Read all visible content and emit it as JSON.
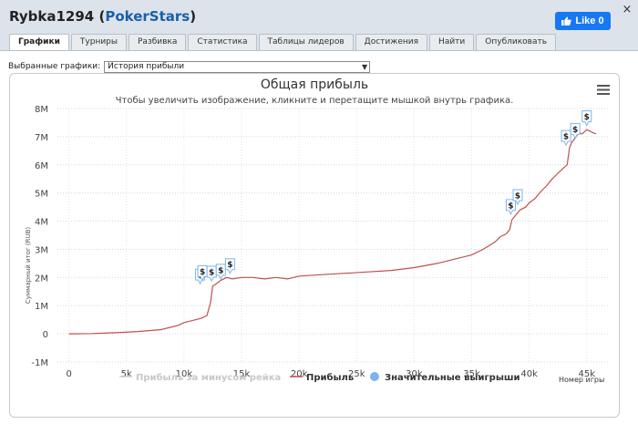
{
  "window": {
    "player": "Rybka1294",
    "site": "PokerStars",
    "close_glyph": "×",
    "like_label": "Like 0"
  },
  "tabs": [
    {
      "label": "Графики",
      "active": true
    },
    {
      "label": "Турниры"
    },
    {
      "label": "Разбивка"
    },
    {
      "label": "Статистика"
    },
    {
      "label": "Таблицы лидеров"
    },
    {
      "label": "Достижения"
    },
    {
      "label": "Найти"
    },
    {
      "label": "Опубликовать"
    }
  ],
  "selector": {
    "label": "Выбранные графики:",
    "value": "История прибыли"
  },
  "icons": {
    "close": "close-icon",
    "like": "thumbs-up-icon",
    "menu": "hamburger-menu-icon",
    "dropdown": "chevron-down-icon"
  },
  "colors": {
    "profit_line": "#c0504d",
    "rake_line": "#d0d0d0",
    "big_wins_marker": "#7cb5ec",
    "site_link": "#1a5fa8",
    "like_button": "#1877f2"
  },
  "chart_data": {
    "type": "line",
    "title": "Общая прибыль",
    "subtitle": "Чтобы увеличить изображение, кликните и перетащите мышкой внутрь графика.",
    "ylabel": "Суммарный итог (RUB)",
    "xlabel": "Номер игры",
    "ylim": [
      -1000000,
      8000000
    ],
    "xlim": [
      -1000,
      47000
    ],
    "y_ticks": [
      "-1M",
      "0",
      "1M",
      "2M",
      "3M",
      "4M",
      "5M",
      "6M",
      "7M",
      "8M"
    ],
    "y_tick_values": [
      -1000000,
      0,
      1000000,
      2000000,
      3000000,
      4000000,
      5000000,
      6000000,
      7000000,
      8000000
    ],
    "x_ticks": [
      "0",
      "5k",
      "10k",
      "15k",
      "20k",
      "25k",
      "30k",
      "35k",
      "40k",
      "45k"
    ],
    "x_tick_values": [
      0,
      5000,
      10000,
      15000,
      20000,
      25000,
      30000,
      35000,
      40000,
      45000
    ],
    "grid": true,
    "legend_position": "bottom",
    "series": [
      {
        "name": "Прибыль",
        "x": [
          0,
          2000,
          4000,
          6000,
          8000,
          9500,
          10000,
          10800,
          11500,
          12000,
          12300,
          12500,
          12700,
          13200,
          13700,
          14200,
          15000,
          16000,
          17000,
          18000,
          19000,
          20000,
          22000,
          24000,
          26000,
          28000,
          30000,
          32000,
          33000,
          34000,
          35000,
          36000,
          37000,
          37500,
          38000,
          38300,
          38500,
          38800,
          39200,
          39700,
          40000,
          40500,
          41000,
          41500,
          42000,
          42500,
          43000,
          43300,
          43500,
          43700,
          44000,
          44300,
          44600,
          45000,
          45500,
          45800
        ],
        "values": [
          0,
          10000,
          40000,
          80000,
          150000,
          300000,
          400000,
          480000,
          550000,
          650000,
          1100000,
          1700000,
          1750000,
          1900000,
          2000000,
          1950000,
          2000000,
          2000000,
          1950000,
          2000000,
          1950000,
          2050000,
          2100000,
          2150000,
          2200000,
          2250000,
          2350000,
          2500000,
          2600000,
          2700000,
          2800000,
          3000000,
          3250000,
          3450000,
          3550000,
          3700000,
          4050000,
          4200000,
          4400000,
          4500000,
          4650000,
          4800000,
          5050000,
          5250000,
          5500000,
          5700000,
          5900000,
          6000000,
          6600000,
          6800000,
          6950000,
          7150000,
          7100000,
          7250000,
          7150000,
          7100000
        ]
      },
      {
        "name": "Прибыль за минусом рейка",
        "visible": false
      },
      {
        "name": "Значительные выигрыши",
        "type": "scatter",
        "marker": "$",
        "x": [
          11400,
          11600,
          12400,
          13200,
          14000,
          38400,
          39000,
          43200,
          44000,
          45000
        ],
        "values": [
          1780000,
          1900000,
          1880000,
          1950000,
          2150000,
          4250000,
          4600000,
          6700000,
          6950000,
          7400000
        ]
      }
    ]
  }
}
